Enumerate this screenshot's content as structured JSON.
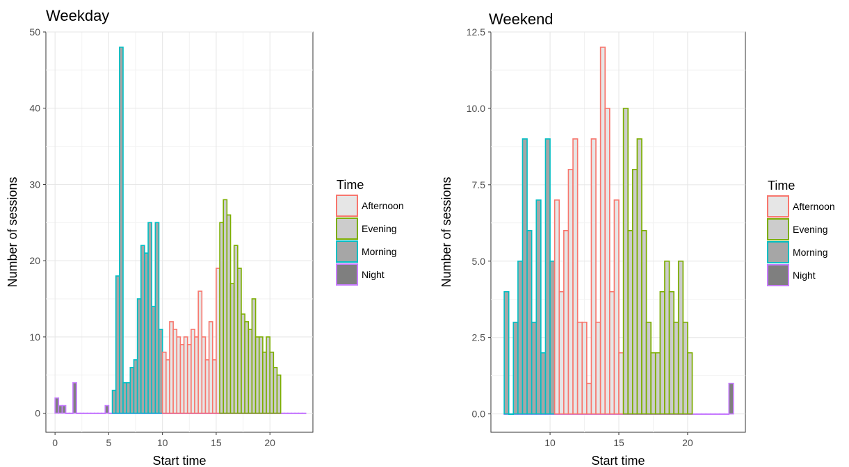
{
  "legend": {
    "title": "Time",
    "entries": [
      {
        "name": "Afternoon",
        "border": "#F8766D",
        "fill": "#e6e6e6"
      },
      {
        "name": "Evening",
        "border": "#7CAE00",
        "fill": "#cccccc"
      },
      {
        "name": "Morning",
        "border": "#00BFC4",
        "fill": "#a6a6a6"
      },
      {
        "name": "Night",
        "border": "#C77CFF",
        "fill": "#7f7f7f"
      }
    ]
  },
  "chart_data": [
    {
      "type": "bar",
      "title": "Weekday",
      "xlabel": "Start time",
      "ylabel": "Number of sessions",
      "xlim": [
        -0.85,
        24.0
      ],
      "ylim": [
        -2.5,
        50.0
      ],
      "xticks": [
        0,
        5,
        10,
        15,
        20
      ],
      "yticks": [
        0,
        10,
        20,
        30,
        40,
        50
      ],
      "ytick_labels": [
        "0",
        "10",
        "20",
        "30",
        "40",
        "50"
      ],
      "grid": true,
      "legend_position": "right",
      "bin_width": 0.3333,
      "series": [
        {
          "name": "Night",
          "bars": [
            [
              0.0,
              2
            ],
            [
              0.333,
              1
            ],
            [
              0.667,
              1
            ],
            [
              1.0,
              0
            ],
            [
              1.333,
              0
            ],
            [
              1.667,
              4
            ],
            [
              2.0,
              0
            ],
            [
              2.333,
              0
            ],
            [
              2.667,
              0
            ],
            [
              3.0,
              0
            ],
            [
              3.333,
              0
            ],
            [
              3.667,
              0
            ],
            [
              4.0,
              0
            ],
            [
              4.333,
              0
            ],
            [
              4.667,
              1
            ],
            [
              5.0,
              0
            ],
            [
              5.333,
              0
            ],
            [
              5.667,
              0
            ],
            [
              6.0,
              0
            ],
            [
              6.333,
              0
            ],
            [
              6.667,
              0
            ],
            [
              7.0,
              0
            ],
            [
              7.333,
              0
            ],
            [
              7.667,
              0
            ],
            [
              8.0,
              0
            ],
            [
              8.333,
              0
            ],
            [
              8.667,
              0
            ],
            [
              9.0,
              0
            ],
            [
              9.333,
              0
            ],
            [
              9.667,
              0
            ],
            [
              10.0,
              0
            ],
            [
              10.333,
              0
            ],
            [
              10.667,
              0
            ],
            [
              11.0,
              0
            ],
            [
              11.333,
              0
            ],
            [
              11.667,
              0
            ],
            [
              12.0,
              0
            ],
            [
              12.333,
              0
            ],
            [
              12.667,
              0
            ],
            [
              13.0,
              0
            ],
            [
              13.333,
              0
            ],
            [
              13.667,
              0
            ],
            [
              14.0,
              0
            ],
            [
              14.333,
              0
            ],
            [
              14.667,
              0
            ],
            [
              15.0,
              0
            ],
            [
              15.333,
              0
            ],
            [
              15.667,
              0
            ],
            [
              16.0,
              0
            ],
            [
              16.333,
              0
            ],
            [
              16.667,
              0
            ],
            [
              17.0,
              0
            ],
            [
              17.333,
              0
            ],
            [
              17.667,
              0
            ],
            [
              18.0,
              0
            ],
            [
              18.333,
              0
            ],
            [
              18.667,
              0
            ],
            [
              19.0,
              0
            ],
            [
              19.333,
              0
            ],
            [
              19.667,
              0
            ],
            [
              20.0,
              0
            ],
            [
              20.333,
              0
            ],
            [
              20.667,
              0
            ],
            [
              21.0,
              0
            ],
            [
              21.333,
              0
            ],
            [
              21.667,
              0
            ],
            [
              22.0,
              0
            ],
            [
              22.333,
              0
            ],
            [
              22.667,
              0
            ],
            [
              23.0,
              0
            ]
          ]
        },
        {
          "name": "Morning",
          "bars": [
            [
              5.333,
              3
            ],
            [
              5.667,
              18
            ],
            [
              6.0,
              48
            ],
            [
              6.333,
              4
            ],
            [
              6.667,
              4
            ],
            [
              7.0,
              6
            ],
            [
              7.333,
              7
            ],
            [
              7.667,
              15
            ],
            [
              8.0,
              22
            ],
            [
              8.333,
              21
            ],
            [
              8.667,
              25
            ],
            [
              9.0,
              14
            ],
            [
              9.333,
              25
            ],
            [
              9.667,
              11
            ]
          ]
        },
        {
          "name": "Afternoon",
          "bars": [
            [
              10.0,
              8
            ],
            [
              10.333,
              7
            ],
            [
              10.667,
              12
            ],
            [
              11.0,
              11
            ],
            [
              11.333,
              10
            ],
            [
              11.667,
              9
            ],
            [
              12.0,
              10
            ],
            [
              12.333,
              9
            ],
            [
              12.667,
              11
            ],
            [
              13.0,
              10
            ],
            [
              13.333,
              16
            ],
            [
              13.667,
              10
            ],
            [
              14.0,
              7
            ],
            [
              14.333,
              12
            ],
            [
              14.667,
              7
            ],
            [
              15.0,
              19
            ]
          ]
        },
        {
          "name": "Evening",
          "bars": [
            [
              15.333,
              25
            ],
            [
              15.667,
              28
            ],
            [
              16.0,
              26
            ],
            [
              16.333,
              17
            ],
            [
              16.667,
              22
            ],
            [
              17.0,
              19
            ],
            [
              17.333,
              13
            ],
            [
              17.667,
              12
            ],
            [
              18.0,
              11
            ],
            [
              18.333,
              15
            ],
            [
              18.667,
              10
            ],
            [
              19.0,
              10
            ],
            [
              19.333,
              8
            ],
            [
              19.667,
              10
            ],
            [
              20.0,
              8
            ],
            [
              20.333,
              6
            ],
            [
              20.667,
              5
            ]
          ]
        }
      ]
    },
    {
      "type": "bar",
      "title": "Weekend",
      "xlabel": "Start time",
      "ylabel": "Number of sessions",
      "xlim": [
        5.7,
        24.2
      ],
      "ylim": [
        -0.6,
        12.5
      ],
      "xticks": [
        10,
        15,
        20
      ],
      "yticks": [
        0,
        2.5,
        5,
        7.5,
        10,
        12.5
      ],
      "ytick_labels": [
        "0.0",
        "2.5",
        "5.0",
        "7.5",
        "10.0",
        "12.5"
      ],
      "grid": true,
      "legend_position": "right",
      "bin_width": 0.3333,
      "series": [
        {
          "name": "Night",
          "bars": [
            [
              6.667,
              0
            ],
            [
              7.0,
              0
            ],
            [
              7.333,
              0
            ],
            [
              7.667,
              0
            ],
            [
              8.0,
              0
            ],
            [
              8.333,
              0
            ],
            [
              8.667,
              0
            ],
            [
              9.0,
              0
            ],
            [
              9.333,
              0
            ],
            [
              9.667,
              0
            ],
            [
              10.0,
              0
            ],
            [
              10.333,
              0
            ],
            [
              10.667,
              0
            ],
            [
              11.0,
              0
            ],
            [
              11.333,
              0
            ],
            [
              11.667,
              0
            ],
            [
              12.0,
              0
            ],
            [
              12.333,
              0
            ],
            [
              12.667,
              0
            ],
            [
              13.0,
              0
            ],
            [
              13.333,
              0
            ],
            [
              13.667,
              0
            ],
            [
              14.0,
              0
            ],
            [
              14.333,
              0
            ],
            [
              14.667,
              0
            ],
            [
              15.0,
              0
            ],
            [
              15.333,
              0
            ],
            [
              15.667,
              0
            ],
            [
              16.0,
              0
            ],
            [
              16.333,
              0
            ],
            [
              16.667,
              0
            ],
            [
              17.0,
              0
            ],
            [
              17.333,
              0
            ],
            [
              17.667,
              0
            ],
            [
              18.0,
              0
            ],
            [
              18.333,
              0
            ],
            [
              18.667,
              0
            ],
            [
              19.0,
              0
            ],
            [
              19.333,
              0
            ],
            [
              19.667,
              0
            ],
            [
              20.0,
              0
            ],
            [
              20.333,
              0
            ],
            [
              20.667,
              0
            ],
            [
              21.0,
              0
            ],
            [
              21.333,
              0
            ],
            [
              21.667,
              0
            ],
            [
              22.0,
              0
            ],
            [
              22.333,
              0
            ],
            [
              22.667,
              0
            ],
            [
              23.0,
              1
            ]
          ]
        },
        {
          "name": "Morning",
          "bars": [
            [
              6.667,
              4
            ],
            [
              7.0,
              0
            ],
            [
              7.333,
              3
            ],
            [
              7.667,
              5
            ],
            [
              8.0,
              9
            ],
            [
              8.333,
              6
            ],
            [
              8.667,
              3
            ],
            [
              9.0,
              7
            ],
            [
              9.333,
              2
            ],
            [
              9.667,
              9
            ],
            [
              10.0,
              5
            ]
          ]
        },
        {
          "name": "Afternoon",
          "bars": [
            [
              10.333,
              7
            ],
            [
              10.667,
              4
            ],
            [
              11.0,
              6
            ],
            [
              11.333,
              8
            ],
            [
              11.667,
              9
            ],
            [
              12.0,
              3
            ],
            [
              12.333,
              3
            ],
            [
              12.667,
              1
            ],
            [
              13.0,
              9
            ],
            [
              13.333,
              3
            ],
            [
              13.667,
              12
            ],
            [
              14.0,
              10
            ],
            [
              14.333,
              4
            ],
            [
              14.667,
              7
            ],
            [
              15.0,
              2
            ]
          ]
        },
        {
          "name": "Evening",
          "bars": [
            [
              15.333,
              10
            ],
            [
              15.667,
              6
            ],
            [
              16.0,
              8
            ],
            [
              16.333,
              9
            ],
            [
              16.667,
              6
            ],
            [
              17.0,
              3
            ],
            [
              17.333,
              2
            ],
            [
              17.667,
              2
            ],
            [
              18.0,
              4
            ],
            [
              18.333,
              5
            ],
            [
              18.667,
              4
            ],
            [
              19.0,
              3
            ],
            [
              19.333,
              5
            ],
            [
              19.667,
              3
            ],
            [
              20.0,
              2
            ]
          ]
        }
      ]
    }
  ]
}
